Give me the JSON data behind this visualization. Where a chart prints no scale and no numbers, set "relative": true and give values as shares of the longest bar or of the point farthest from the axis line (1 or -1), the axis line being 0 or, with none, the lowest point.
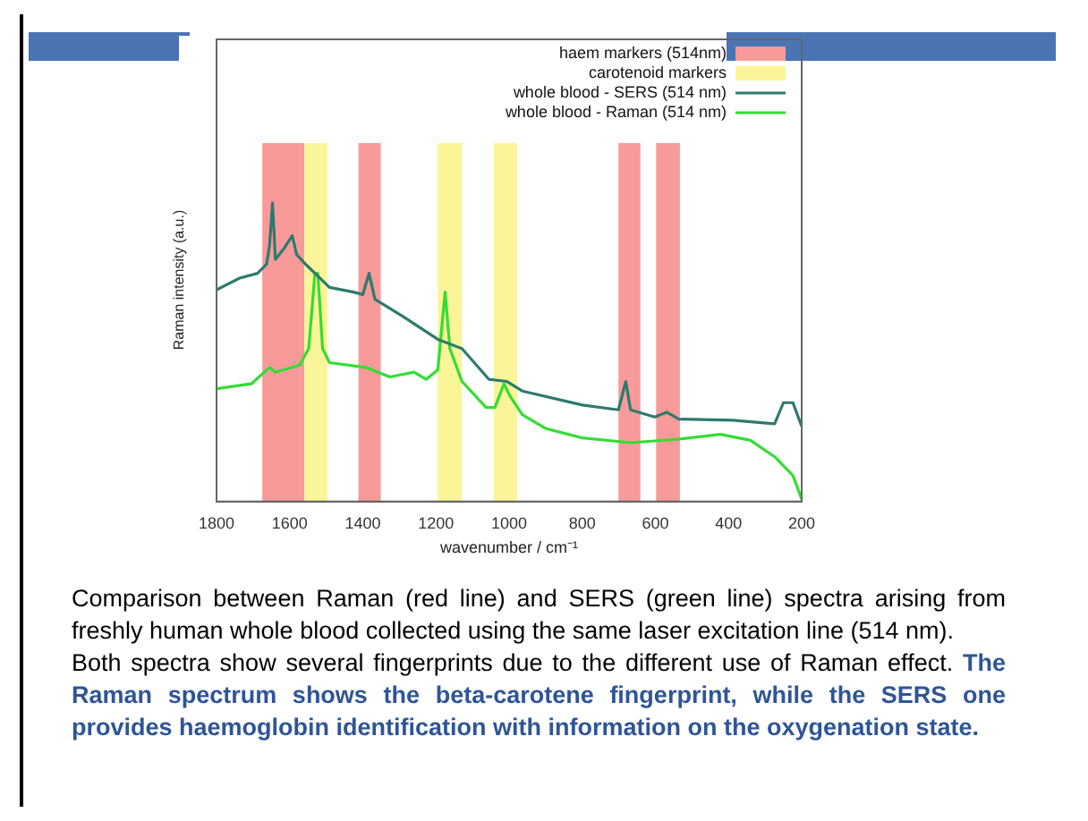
{
  "chart_data": {
    "type": "line",
    "relative": true,
    "xlabel": "wavenumber / cm⁻¹",
    "ylabel": "Raman intensity (a.u.)",
    "xlim": [
      1800,
      200
    ],
    "xticks": [
      1800,
      1600,
      1400,
      1200,
      1000,
      800,
      600,
      400,
      200
    ],
    "grid": false,
    "legend": "top right",
    "marker": "none",
    "line_style": "solid",
    "bands": [
      {
        "axis": "x",
        "from": 1675,
        "to": 1560,
        "label": "haem markers (514nm)",
        "color": "#f99a9a"
      },
      {
        "axis": "x",
        "from": 1560,
        "to": 1497,
        "label": "carotenoid markers",
        "color": "#fbf59a"
      },
      {
        "axis": "x",
        "from": 1412,
        "to": 1351,
        "color": "#f99a9a"
      },
      {
        "axis": "x",
        "from": 1195,
        "to": 1129,
        "color": "#fbf59a"
      },
      {
        "axis": "x",
        "from": 1042,
        "to": 978,
        "color": "#fbf59a"
      },
      {
        "axis": "x",
        "from": 701,
        "to": 641,
        "color": "#f99a9a"
      },
      {
        "axis": "x",
        "from": 598,
        "to": 533,
        "color": "#f99a9a"
      }
    ],
    "series": [
      {
        "name": "whole blood - SERS (514 nm)",
        "color": "#2e7a6e",
        "x": [
          1800,
          1737,
          1688,
          1663,
          1655,
          1647,
          1639,
          1614,
          1593,
          1581,
          1557,
          1491,
          1425,
          1400,
          1383,
          1367,
          1293,
          1195,
          1129,
          1055,
          1006,
          964,
          800,
          701,
          681,
          668,
          602,
          569,
          536,
          389,
          274,
          250,
          224,
          200
        ],
        "values": [
          0.709,
          0.748,
          0.764,
          0.795,
          0.858,
          1.0,
          0.811,
          0.85,
          0.89,
          0.827,
          0.795,
          0.717,
          0.701,
          0.693,
          0.764,
          0.677,
          0.622,
          0.543,
          0.512,
          0.409,
          0.402,
          0.37,
          0.323,
          0.307,
          0.402,
          0.307,
          0.283,
          0.299,
          0.276,
          0.272,
          0.26,
          0.331,
          0.331,
          0.252
        ]
      },
      {
        "name": "whole blood - Raman (514 nm)",
        "color": "#33dd33",
        "x": [
          1800,
          1705,
          1655,
          1639,
          1573,
          1548,
          1531,
          1523,
          1510,
          1491,
          1392,
          1326,
          1260,
          1227,
          1195,
          1175,
          1162,
          1129,
          1063,
          1039,
          1014,
          998,
          964,
          899,
          800,
          668,
          536,
          422,
          340,
          274,
          224,
          200
        ],
        "values": [
          0.378,
          0.394,
          0.449,
          0.433,
          0.457,
          0.512,
          0.764,
          0.764,
          0.512,
          0.465,
          0.449,
          0.417,
          0.433,
          0.409,
          0.441,
          0.701,
          0.512,
          0.402,
          0.315,
          0.315,
          0.394,
          0.354,
          0.291,
          0.244,
          0.213,
          0.197,
          0.209,
          0.225,
          0.205,
          0.15,
          0.087,
          0.008
        ]
      }
    ],
    "annotations": [
      "Comparison between Raman (red line) and SERS (green line) spectra arising from freshly human whole blood collected using the same laser excitation line (514 nm).",
      "Both spectra show several fingerprints due to the different use of Raman effect.",
      "The Raman spectrum shows the beta-carotene fingerprint, while the SERS one provides haemoglobin identification with information on the oxygenation state."
    ]
  }
}
